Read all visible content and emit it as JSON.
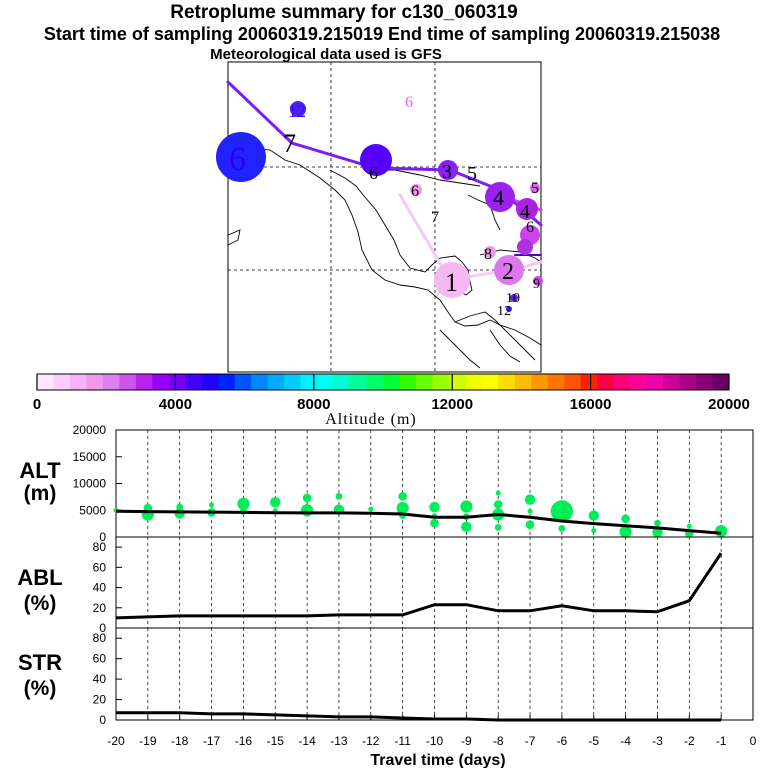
{
  "title": "Retroplume summary for c130_060319",
  "subtitle": "Start time of sampling 20060319.215019     End time of sampling 20060319.215038",
  "met_note": "Meteorological data used is GFS",
  "colorbar": {
    "label": "Altitude (m)",
    "ticks": [
      "0",
      "4000",
      "8000",
      "12000",
      "16000",
      "20000"
    ],
    "colors": [
      "#ffe6ff",
      "#ffccff",
      "#f7b3f7",
      "#ee99ee",
      "#e080f0",
      "#cc55ee",
      "#bb22ee",
      "#9900ff",
      "#7700ee",
      "#4400ff",
      "#2200ff",
      "#0022ff",
      "#0055ff",
      "#0088ff",
      "#00aaff",
      "#00ccff",
      "#00eeff",
      "#00ffee",
      "#00ffcc",
      "#00ff99",
      "#00ff66",
      "#00ff33",
      "#33ff00",
      "#66ff00",
      "#99ff00",
      "#ccff00",
      "#eeff00",
      "#ffff00",
      "#ffdd00",
      "#ffbb00",
      "#ff9900",
      "#ff7700",
      "#ff5500",
      "#ff2200",
      "#ff0044",
      "#ff0077",
      "#ff0099",
      "#ee00aa",
      "#cc0099",
      "#aa0088",
      "#880077",
      "#660066"
    ]
  },
  "map": {
    "labels": [
      {
        "text": "12",
        "color": "#5500ee"
      },
      {
        "text": "6",
        "color": "#cc66ee"
      },
      {
        "text": "7",
        "color": "#000"
      },
      {
        "text": "6",
        "color": "#2200ff"
      },
      {
        "text": "5",
        "color": "#6600ff"
      },
      {
        "text": "6",
        "color": "#000"
      },
      {
        "text": "3",
        "color": "#000"
      },
      {
        "text": "5",
        "color": "#000"
      },
      {
        "text": "6",
        "color": "#000"
      },
      {
        "text": "7",
        "color": "#000"
      },
      {
        "text": "4",
        "color": "#000"
      },
      {
        "text": "4",
        "color": "#000"
      },
      {
        "text": "5",
        "color": "#000"
      },
      {
        "text": "6",
        "color": "#000"
      },
      {
        "text": "8",
        "color": "#000"
      },
      {
        "text": "1",
        "color": "#000"
      },
      {
        "text": "2",
        "color": "#000"
      },
      {
        "text": "9",
        "color": "#000"
      },
      {
        "text": "10",
        "color": "#000"
      },
      {
        "text": "12",
        "color": "#000"
      }
    ]
  },
  "chart_data": [
    {
      "type": "line",
      "panel": "ALT",
      "ylabel_line1": "ALT",
      "ylabel_line2": "(m)",
      "ylim": [
        0,
        20000
      ],
      "yticks": [
        0,
        5000,
        10000,
        15000,
        20000
      ],
      "x": [
        -20,
        -19,
        -18,
        -17,
        -16,
        -15,
        -14,
        -13,
        -12,
        -11,
        -10,
        -9,
        -8,
        -7,
        -6,
        -5,
        -4,
        -3,
        -2,
        -1
      ],
      "series": [
        {
          "name": "mean altitude",
          "values": [
            4800,
            4750,
            4700,
            4650,
            4600,
            4550,
            4500,
            4500,
            4450,
            4300,
            3700,
            3700,
            4200,
            3700,
            3000,
            2500,
            2100,
            1700,
            1200,
            700
          ]
        }
      ],
      "scatter": [
        {
          "x": -20,
          "y": 5000
        },
        {
          "x": -19,
          "y": 5400
        },
        {
          "x": -19,
          "y": 4200
        },
        {
          "x": -18,
          "y": 5600
        },
        {
          "x": -18,
          "y": 4400
        },
        {
          "x": -17,
          "y": 6000
        },
        {
          "x": -17,
          "y": 4600
        },
        {
          "x": -16,
          "y": 6200
        },
        {
          "x": -16,
          "y": 4800
        },
        {
          "x": -15,
          "y": 6500
        },
        {
          "x": -15,
          "y": 4900
        },
        {
          "x": -14,
          "y": 7300
        },
        {
          "x": -14,
          "y": 5000
        },
        {
          "x": -13,
          "y": 7600
        },
        {
          "x": -13,
          "y": 5100
        },
        {
          "x": -12,
          "y": 5200
        },
        {
          "x": -11,
          "y": 7600
        },
        {
          "x": -11,
          "y": 5400
        },
        {
          "x": -11,
          "y": 4000
        },
        {
          "x": -10,
          "y": 5600
        },
        {
          "x": -10,
          "y": 4000
        },
        {
          "x": -10,
          "y": 2600
        },
        {
          "x": -9,
          "y": 5700
        },
        {
          "x": -9,
          "y": 3800
        },
        {
          "x": -9,
          "y": 1900
        },
        {
          "x": -8,
          "y": 8200
        },
        {
          "x": -8,
          "y": 6100
        },
        {
          "x": -8,
          "y": 4200
        },
        {
          "x": -8,
          "y": 1800
        },
        {
          "x": -7,
          "y": 7000
        },
        {
          "x": -7,
          "y": 4800
        },
        {
          "x": -7,
          "y": 2300
        },
        {
          "x": -6,
          "y": 4800
        },
        {
          "x": -6,
          "y": 1600
        },
        {
          "x": -5,
          "y": 4000
        },
        {
          "x": -5,
          "y": 1200
        },
        {
          "x": -4,
          "y": 3400
        },
        {
          "x": -4,
          "y": 1000
        },
        {
          "x": -3,
          "y": 2600
        },
        {
          "x": -3,
          "y": 900
        },
        {
          "x": -2,
          "y": 2000
        },
        {
          "x": -2,
          "y": 700
        },
        {
          "x": -1,
          "y": 1100
        }
      ],
      "scatter_color": "#00ee55"
    },
    {
      "type": "line",
      "panel": "ABL",
      "ylabel_line1": "ABL",
      "ylabel_line2": "(%)",
      "ylim": [
        0,
        90
      ],
      "yticks": [
        0,
        20,
        40,
        60,
        80
      ],
      "x": [
        -20,
        -19,
        -18,
        -17,
        -16,
        -15,
        -14,
        -13,
        -12,
        -11,
        -10,
        -9,
        -8,
        -7,
        -6,
        -5,
        -4,
        -3,
        -2,
        -1
      ],
      "series": [
        {
          "name": "ABL fraction",
          "values": [
            10,
            11,
            12,
            12,
            12,
            12,
            12,
            13,
            13,
            13,
            23,
            23,
            17,
            17,
            22,
            17,
            17,
            16,
            27,
            74
          ]
        }
      ]
    },
    {
      "type": "line",
      "panel": "STR",
      "ylabel_line1": "STR",
      "ylabel_line2": "(%)",
      "ylim": [
        0,
        90
      ],
      "yticks": [
        0,
        20,
        40,
        60,
        80
      ],
      "x": [
        -20,
        -19,
        -18,
        -17,
        -16,
        -15,
        -14,
        -13,
        -12,
        -11,
        -10,
        -9,
        -8,
        -7,
        -6,
        -5,
        -4,
        -3,
        -2,
        -1
      ],
      "series": [
        {
          "name": "STR fraction",
          "values": [
            7,
            7,
            7,
            6,
            6,
            5,
            4,
            3,
            3,
            2,
            1,
            1,
            0,
            0,
            0,
            0,
            0,
            0,
            0,
            0
          ]
        }
      ],
      "xticks": [
        "-20",
        "-19",
        "-18",
        "-17",
        "-16",
        "-15",
        "-14",
        "-13",
        "-12",
        "-11",
        "-10",
        "-9",
        "-8",
        "-7",
        "-6",
        "-5",
        "-4",
        "-3",
        "-2",
        "-1",
        "0"
      ],
      "xlabel": "Travel time (days)"
    }
  ]
}
